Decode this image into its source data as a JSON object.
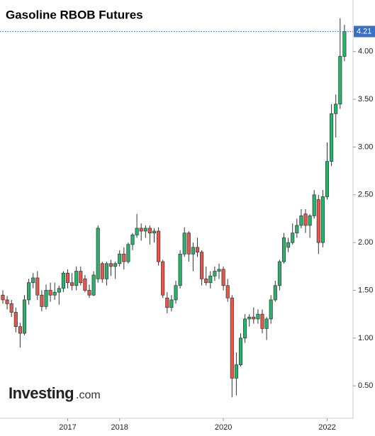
{
  "chart_data": {
    "type": "candlestick",
    "title": "Gasoline RBOB Futures",
    "categories": [
      null,
      null,
      null,
      null,
      null,
      null,
      null,
      null,
      null,
      null,
      null,
      null,
      null,
      null,
      null,
      "2017",
      null,
      null,
      null,
      null,
      null,
      null,
      null,
      null,
      null,
      null,
      null,
      "2018",
      null,
      null,
      null,
      null,
      null,
      null,
      null,
      null,
      null,
      null,
      null,
      null,
      null,
      null,
      null,
      null,
      null,
      null,
      null,
      null,
      null,
      null,
      null,
      "2020",
      null,
      null,
      null,
      null,
      null,
      null,
      null,
      null,
      null,
      null,
      null,
      null,
      null,
      null,
      null,
      null,
      null,
      null,
      null,
      null,
      null,
      null,
      null,
      "2022",
      null,
      null,
      null,
      null
    ],
    "open": [
      1.45,
      1.4,
      1.36,
      1.27,
      1.12,
      1.05,
      1.4,
      1.58,
      1.63,
      1.45,
      1.33,
      1.5,
      1.45,
      1.48,
      1.52,
      1.68,
      1.58,
      1.55,
      1.7,
      1.62,
      1.5,
      1.45,
      1.62,
      1.78,
      1.62,
      1.78,
      1.75,
      1.78,
      1.88,
      1.8,
      1.98,
      2.08,
      2.15,
      2.12,
      2.15,
      2.1,
      2.12,
      1.8,
      1.42,
      1.32,
      1.4,
      1.55,
      1.88,
      2.1,
      1.88,
      1.95,
      1.9,
      1.62,
      1.58,
      1.65,
      1.7,
      1.72,
      1.55,
      1.42,
      0.58,
      0.72,
      1.0,
      1.2,
      1.22,
      1.2,
      1.25,
      1.1,
      1.2,
      1.4,
      1.55,
      1.8,
      1.95,
      2.0,
      2.1,
      2.18,
      2.3,
      2.18,
      2.28,
      2.45,
      2.0,
      2.48,
      2.85,
      3.35,
      3.45,
      3.95
    ],
    "high": [
      1.5,
      1.44,
      1.4,
      1.32,
      1.16,
      1.45,
      1.62,
      1.68,
      1.7,
      1.5,
      1.56,
      1.58,
      1.58,
      1.55,
      1.7,
      1.72,
      1.68,
      1.75,
      1.75,
      1.66,
      1.56,
      1.7,
      2.18,
      1.8,
      1.8,
      1.82,
      1.8,
      1.92,
      1.95,
      2.0,
      2.1,
      2.3,
      2.2,
      2.18,
      2.18,
      2.15,
      2.16,
      1.82,
      1.48,
      1.45,
      1.6,
      1.92,
      2.16,
      2.12,
      2.0,
      2.05,
      1.92,
      1.75,
      1.7,
      1.75,
      1.78,
      1.75,
      1.62,
      1.45,
      0.85,
      1.05,
      1.25,
      1.25,
      1.32,
      1.3,
      1.3,
      1.22,
      1.45,
      1.6,
      1.82,
      2.1,
      2.05,
      2.2,
      2.25,
      2.35,
      2.35,
      2.3,
      2.55,
      2.5,
      2.55,
      3.05,
      3.45,
      3.55,
      4.35,
      4.28
    ],
    "low": [
      1.36,
      1.3,
      1.22,
      1.06,
      0.9,
      1.03,
      1.35,
      1.52,
      1.4,
      1.28,
      1.3,
      1.38,
      1.4,
      1.35,
      1.48,
      1.52,
      1.5,
      1.5,
      1.55,
      1.48,
      1.42,
      1.44,
      1.58,
      1.58,
      1.55,
      1.65,
      1.62,
      1.75,
      1.72,
      1.78,
      1.92,
      2.05,
      2.02,
      2.05,
      1.98,
      2.0,
      1.76,
      1.42,
      1.26,
      1.28,
      1.36,
      1.52,
      1.85,
      1.8,
      1.7,
      1.85,
      1.55,
      1.55,
      1.52,
      1.6,
      1.62,
      1.5,
      1.38,
      0.38,
      0.4,
      0.7,
      0.95,
      1.12,
      1.15,
      1.15,
      1.05,
      0.98,
      1.15,
      1.38,
      1.5,
      1.78,
      1.9,
      1.98,
      2.05,
      2.15,
      2.1,
      2.05,
      2.25,
      1.88,
      1.95,
      2.45,
      2.8,
      3.1,
      3.4,
      3.9
    ],
    "close": [
      1.4,
      1.36,
      1.27,
      1.12,
      1.05,
      1.4,
      1.58,
      1.63,
      1.45,
      1.33,
      1.5,
      1.45,
      1.48,
      1.52,
      1.68,
      1.58,
      1.55,
      1.7,
      1.58,
      1.5,
      1.45,
      1.66,
      2.15,
      1.62,
      1.78,
      1.75,
      1.78,
      1.88,
      1.8,
      1.98,
      2.08,
      2.15,
      2.12,
      2.15,
      2.1,
      2.12,
      1.8,
      1.45,
      1.32,
      1.4,
      1.55,
      1.88,
      2.1,
      1.88,
      1.95,
      1.9,
      1.62,
      1.58,
      1.65,
      1.7,
      1.72,
      1.55,
      1.42,
      0.58,
      0.72,
      1.0,
      1.2,
      1.22,
      1.2,
      1.25,
      1.1,
      1.2,
      1.4,
      1.55,
      1.8,
      2.05,
      2.0,
      2.1,
      2.18,
      2.28,
      2.18,
      2.28,
      2.5,
      2.0,
      2.48,
      2.85,
      3.35,
      3.45,
      3.95,
      4.21
    ],
    "up_color": "#26b36b",
    "down_color": "#e8554b",
    "ylim": [
      0.16,
      4.54
    ],
    "yticks": [
      {
        "value": 0.5,
        "label": "0.50"
      },
      {
        "value": 1,
        "label": "1.00"
      },
      {
        "value": 1.5,
        "label": "1.50"
      },
      {
        "value": 2,
        "label": "2.00"
      },
      {
        "value": 2.5,
        "label": "2.50"
      },
      {
        "value": 3,
        "label": "3.00"
      },
      {
        "value": 3.5,
        "label": "3.50"
      },
      {
        "value": 4,
        "label": "4.00"
      }
    ],
    "grid": false,
    "watermark": {
      "name": "Investing",
      "suffix": ".com"
    }
  }
}
